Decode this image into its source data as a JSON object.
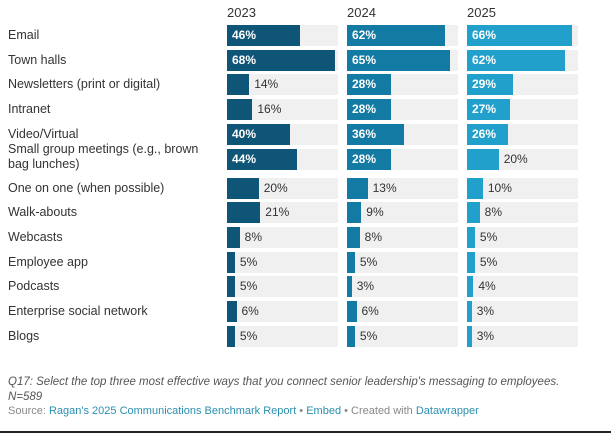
{
  "chart_data": {
    "type": "bar",
    "orientation": "horizontal",
    "layout": "small-multiples",
    "xlim": [
      0,
      70
    ],
    "unit": "%",
    "categories": [
      "Email",
      "Town halls",
      "Newsletters (print or digital)",
      "Intranet",
      "Video/Virtual",
      "Small group meetings (e.g., brown bag lunches)",
      "One on one (when possible)",
      "Walk-abouts",
      "Webcasts",
      "Employee app",
      "Podcasts",
      "Enterprise social network",
      "Blogs"
    ],
    "series": [
      {
        "name": "2023",
        "color": "#0f5577",
        "values": [
          46,
          68,
          14,
          16,
          40,
          44,
          20,
          21,
          8,
          5,
          5,
          6,
          5
        ]
      },
      {
        "name": "2024",
        "color": "#127aa3",
        "values": [
          62,
          65,
          28,
          28,
          36,
          28,
          13,
          9,
          8,
          5,
          3,
          6,
          5
        ]
      },
      {
        "name": "2025",
        "color": "#22a0cc",
        "values": [
          66,
          62,
          29,
          27,
          26,
          20,
          10,
          8,
          5,
          5,
          4,
          3,
          3
        ]
      }
    ],
    "track_color": "#f0f0f0",
    "title": "",
    "xlabel": "",
    "ylabel": "",
    "grid": false,
    "legend": "column-headers"
  },
  "notes": {
    "question": "Q17: Select the top three most effective ways that you connect senior leadership's messaging to employees.",
    "sample": "N=589"
  },
  "footer": {
    "source_prefix": "Source: ",
    "source_link": "Ragan's 2025 Communications Benchmark Report",
    "sep1": " • ",
    "embed": "Embed",
    "sep2": "  • Created with ",
    "credit_link": "Datawrapper"
  }
}
